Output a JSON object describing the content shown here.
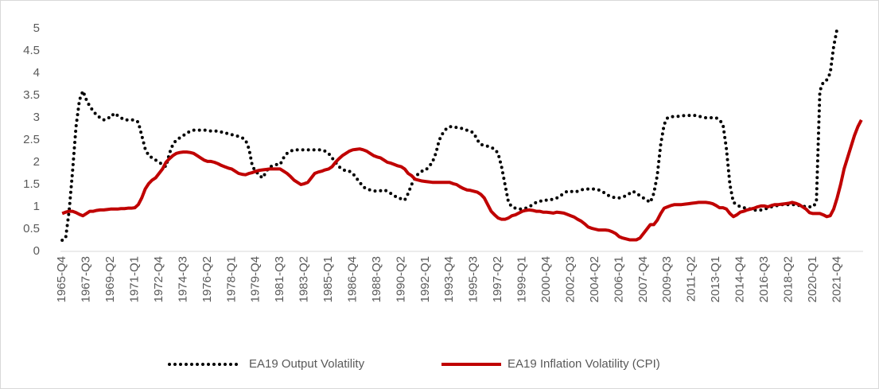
{
  "chart_data": {
    "type": "line",
    "categories": [
      "1965-Q4",
      null,
      null,
      null,
      null,
      null,
      null,
      "1967-Q3",
      null,
      null,
      null,
      null,
      null,
      null,
      "1969-Q2",
      null,
      null,
      null,
      null,
      null,
      null,
      "1971-Q1",
      null,
      null,
      null,
      null,
      null,
      null,
      "1972-Q4",
      null,
      null,
      null,
      null,
      null,
      null,
      "1974-Q3",
      null,
      null,
      null,
      null,
      null,
      null,
      "1976-Q2",
      null,
      null,
      null,
      null,
      null,
      null,
      "1978-Q1",
      null,
      null,
      null,
      null,
      null,
      null,
      "1979-Q4",
      null,
      null,
      null,
      null,
      null,
      null,
      "1981-Q3",
      null,
      null,
      null,
      null,
      null,
      null,
      "1983-Q2",
      null,
      null,
      null,
      null,
      null,
      null,
      "1985-Q1",
      null,
      null,
      null,
      null,
      null,
      null,
      "1986-Q4",
      null,
      null,
      null,
      null,
      null,
      null,
      "1988-Q3",
      null,
      null,
      null,
      null,
      null,
      null,
      "1990-Q2",
      null,
      null,
      null,
      null,
      null,
      null,
      "1992-Q1",
      null,
      null,
      null,
      null,
      null,
      null,
      "1993-Q4",
      null,
      null,
      null,
      null,
      null,
      null,
      "1995-Q3",
      null,
      null,
      null,
      null,
      null,
      null,
      "1997-Q2",
      null,
      null,
      null,
      null,
      null,
      null,
      "1999-Q1",
      null,
      null,
      null,
      null,
      null,
      null,
      "2000-Q4",
      null,
      null,
      null,
      null,
      null,
      null,
      "2002-Q3",
      null,
      null,
      null,
      null,
      null,
      null,
      "2004-Q2",
      null,
      null,
      null,
      null,
      null,
      null,
      "2006-Q1",
      null,
      null,
      null,
      null,
      null,
      null,
      "2007-Q4",
      null,
      null,
      null,
      null,
      null,
      null,
      "2009-Q3",
      null,
      null,
      null,
      null,
      null,
      null,
      "2011-Q2",
      null,
      null,
      null,
      null,
      null,
      null,
      "2013-Q1",
      null,
      null,
      null,
      null,
      null,
      null,
      "2014-Q4",
      null,
      null,
      null,
      null,
      null,
      null,
      "2016-Q3",
      null,
      null,
      null,
      null,
      null,
      null,
      "2018-Q2",
      null,
      null,
      null,
      null,
      null,
      null,
      "2020-Q1",
      null,
      null,
      null,
      null,
      null,
      null,
      "2021-Q4",
      null,
      null,
      null,
      null,
      null,
      null,
      null
    ],
    "series": [
      {
        "name": "EA19 Output Volatility",
        "color": "#000000",
        "style": "dotted",
        "values": [
          0.25,
          0.3,
          0.9,
          1.8,
          2.8,
          3.4,
          3.6,
          3.4,
          3.25,
          3.15,
          3.05,
          3.0,
          2.95,
          3.0,
          3.0,
          3.1,
          3.05,
          3.0,
          2.95,
          2.95,
          2.95,
          2.95,
          2.9,
          2.6,
          2.3,
          2.15,
          2.1,
          2.05,
          2.0,
          1.95,
          1.9,
          2.2,
          2.4,
          2.5,
          2.55,
          2.6,
          2.65,
          2.7,
          2.72,
          2.72,
          2.72,
          2.72,
          2.72,
          2.7,
          2.7,
          2.7,
          2.68,
          2.65,
          2.65,
          2.62,
          2.6,
          2.58,
          2.55,
          2.5,
          2.3,
          1.9,
          1.8,
          1.7,
          1.65,
          1.8,
          1.9,
          1.92,
          1.95,
          1.95,
          2.1,
          2.2,
          2.25,
          2.28,
          2.28,
          2.28,
          2.28,
          2.28,
          2.28,
          2.28,
          2.28,
          2.28,
          2.25,
          2.2,
          2.1,
          2.0,
          1.9,
          1.85,
          1.8,
          1.8,
          1.75,
          1.65,
          1.55,
          1.45,
          1.4,
          1.38,
          1.36,
          1.35,
          1.36,
          1.38,
          1.35,
          1.3,
          1.25,
          1.2,
          1.18,
          1.15,
          1.3,
          1.5,
          1.65,
          1.75,
          1.8,
          1.82,
          1.9,
          2.0,
          2.2,
          2.5,
          2.65,
          2.75,
          2.8,
          2.8,
          2.78,
          2.77,
          2.75,
          2.72,
          2.7,
          2.65,
          2.5,
          2.4,
          2.38,
          2.36,
          2.33,
          2.3,
          2.2,
          1.9,
          1.5,
          1.1,
          1.0,
          0.97,
          0.95,
          0.95,
          0.97,
          1.0,
          1.05,
          1.1,
          1.12,
          1.15,
          1.15,
          1.15,
          1.18,
          1.2,
          1.25,
          1.3,
          1.35,
          1.35,
          1.33,
          1.35,
          1.38,
          1.4,
          1.4,
          1.4,
          1.4,
          1.38,
          1.35,
          1.3,
          1.25,
          1.22,
          1.2,
          1.2,
          1.22,
          1.25,
          1.3,
          1.35,
          1.3,
          1.25,
          1.2,
          1.15,
          1.1,
          1.3,
          1.7,
          2.4,
          2.85,
          3.0,
          3.02,
          3.03,
          3.03,
          3.04,
          3.05,
          3.05,
          3.06,
          3.05,
          3.03,
          3.02,
          3.0,
          3.0,
          3.0,
          3.0,
          2.95,
          2.85,
          2.3,
          1.5,
          1.1,
          1.05,
          1.0,
          0.98,
          0.97,
          0.95,
          0.93,
          0.92,
          0.93,
          0.95,
          0.97,
          1.0,
          1.02,
          1.03,
          1.05,
          1.05,
          1.05,
          1.05,
          1.05,
          1.03,
          1.02,
          1.0,
          1.0,
          1.0,
          1.1,
          3.6,
          3.8,
          3.85,
          4.0,
          4.6,
          5.0,
          null,
          null,
          null,
          null,
          null,
          null,
          null
        ]
      },
      {
        "name": "EA19 Inflation Volatility (CPI)",
        "color": "#c00000",
        "style": "solid",
        "values": [
          0.85,
          0.88,
          0.9,
          0.9,
          0.87,
          0.83,
          0.8,
          0.85,
          0.9,
          0.9,
          0.92,
          0.93,
          0.93,
          0.94,
          0.95,
          0.95,
          0.95,
          0.96,
          0.96,
          0.97,
          0.97,
          0.98,
          1.05,
          1.2,
          1.4,
          1.52,
          1.6,
          1.65,
          1.75,
          1.85,
          2.0,
          2.08,
          2.15,
          2.2,
          2.22,
          2.23,
          2.23,
          2.22,
          2.2,
          2.15,
          2.1,
          2.05,
          2.02,
          2.02,
          2.0,
          1.97,
          1.93,
          1.9,
          1.87,
          1.85,
          1.8,
          1.75,
          1.73,
          1.72,
          1.75,
          1.77,
          1.8,
          1.82,
          1.83,
          1.84,
          1.85,
          1.85,
          1.85,
          1.85,
          1.8,
          1.75,
          1.68,
          1.6,
          1.55,
          1.5,
          1.52,
          1.55,
          1.65,
          1.75,
          1.78,
          1.8,
          1.83,
          1.85,
          1.9,
          2.0,
          2.08,
          2.15,
          2.2,
          2.25,
          2.28,
          2.29,
          2.3,
          2.28,
          2.25,
          2.2,
          2.15,
          2.12,
          2.1,
          2.05,
          2.0,
          1.98,
          1.95,
          1.92,
          1.9,
          1.85,
          1.75,
          1.7,
          1.62,
          1.6,
          1.58,
          1.57,
          1.56,
          1.55,
          1.55,
          1.55,
          1.55,
          1.55,
          1.55,
          1.52,
          1.5,
          1.45,
          1.41,
          1.38,
          1.37,
          1.35,
          1.33,
          1.28,
          1.2,
          1.05,
          0.9,
          0.82,
          0.75,
          0.72,
          0.72,
          0.75,
          0.8,
          0.82,
          0.86,
          0.9,
          0.92,
          0.93,
          0.92,
          0.9,
          0.9,
          0.88,
          0.88,
          0.87,
          0.86,
          0.88,
          0.87,
          0.86,
          0.83,
          0.8,
          0.77,
          0.72,
          0.68,
          0.62,
          0.55,
          0.52,
          0.5,
          0.48,
          0.48,
          0.48,
          0.47,
          0.44,
          0.4,
          0.33,
          0.3,
          0.28,
          0.26,
          0.26,
          0.26,
          0.3,
          0.4,
          0.5,
          0.6,
          0.6,
          0.7,
          0.85,
          0.97,
          1.0,
          1.03,
          1.05,
          1.05,
          1.05,
          1.06,
          1.07,
          1.08,
          1.09,
          1.1,
          1.1,
          1.1,
          1.09,
          1.07,
          1.03,
          0.98,
          0.98,
          0.95,
          0.85,
          0.78,
          0.82,
          0.88,
          0.9,
          0.93,
          0.95,
          0.97,
          1.0,
          1.02,
          1.02,
          1.0,
          1.03,
          1.05,
          1.05,
          1.06,
          1.07,
          1.08,
          1.1,
          1.08,
          1.05,
          1.0,
          0.95,
          0.87,
          0.85,
          0.85,
          0.85,
          0.82,
          0.78,
          0.8,
          0.95,
          1.2,
          1.5,
          1.85,
          2.1,
          2.35,
          2.6,
          2.8,
          2.95
        ]
      }
    ],
    "ylim": [
      0,
      5
    ],
    "yticks": [
      0,
      0.5,
      1,
      1.5,
      2,
      2.5,
      3,
      3.5,
      4,
      4.5,
      5
    ],
    "grid": false,
    "legend": "bottom"
  }
}
